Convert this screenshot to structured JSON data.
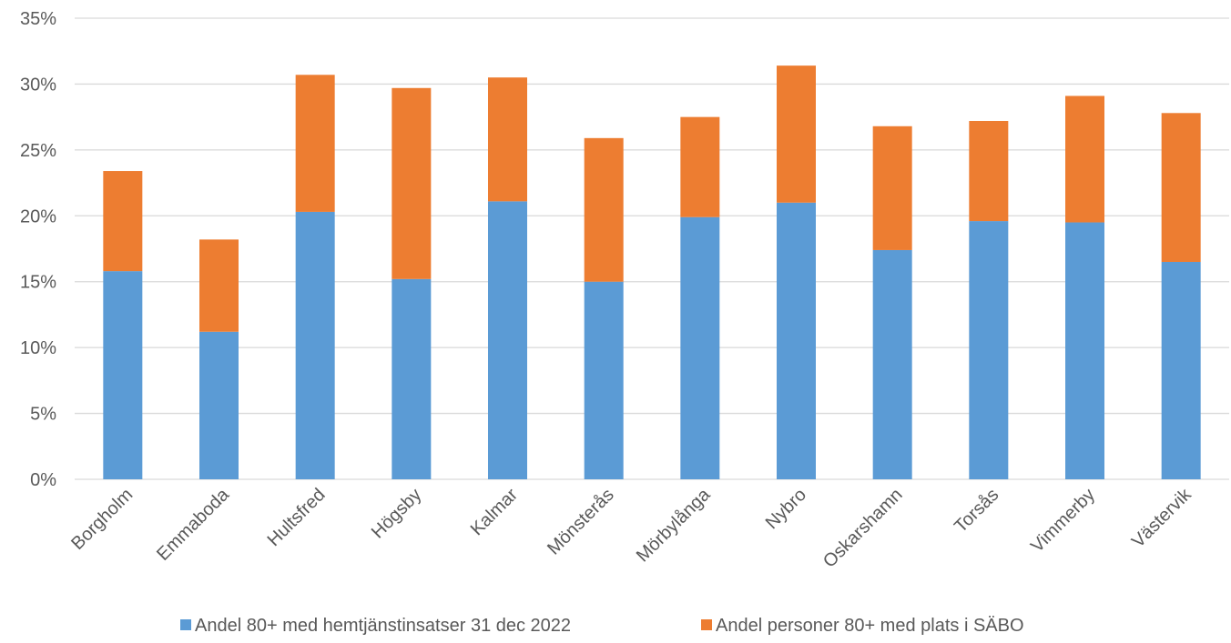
{
  "chart_data": {
    "type": "bar",
    "stacked": true,
    "categories": [
      "Borgholm",
      "Emmaboda",
      "Hultsfred",
      "Högsby",
      "Kalmar",
      "Mönsterås",
      "Mörbylånga",
      "Nybro",
      "Oskarshamn",
      "Torsås",
      "Vimmerby",
      "Västervik"
    ],
    "series": [
      {
        "name": "Andel 80+ med hemtjänstinsatser 31 dec 2022",
        "color": "#5b9bd5",
        "values": [
          15.8,
          11.2,
          20.3,
          15.2,
          21.1,
          15.0,
          19.9,
          21.0,
          17.4,
          19.6,
          19.5,
          16.5
        ]
      },
      {
        "name": "Andel personer 80+ med plats i SÄBO",
        "color": "#ed7d31",
        "values": [
          7.6,
          7.0,
          10.4,
          14.5,
          9.4,
          10.9,
          7.6,
          10.4,
          9.4,
          7.6,
          9.6,
          11.3
        ]
      }
    ],
    "ylim": [
      0,
      35
    ],
    "yticks": [
      "0%",
      "5%",
      "10%",
      "15%",
      "20%",
      "25%",
      "30%",
      "35%"
    ],
    "ytick_values": [
      0,
      5,
      10,
      15,
      20,
      25,
      30,
      35
    ],
    "grid": true,
    "legend_position": "bottom"
  }
}
